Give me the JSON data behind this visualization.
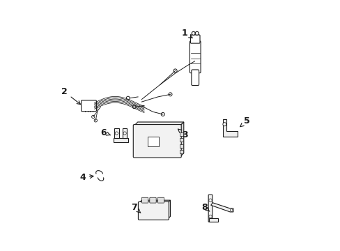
{
  "background_color": "#ffffff",
  "line_color": "#1a1a1a",
  "label_color": "#1a1a1a",
  "label_fontsize": 9
}
